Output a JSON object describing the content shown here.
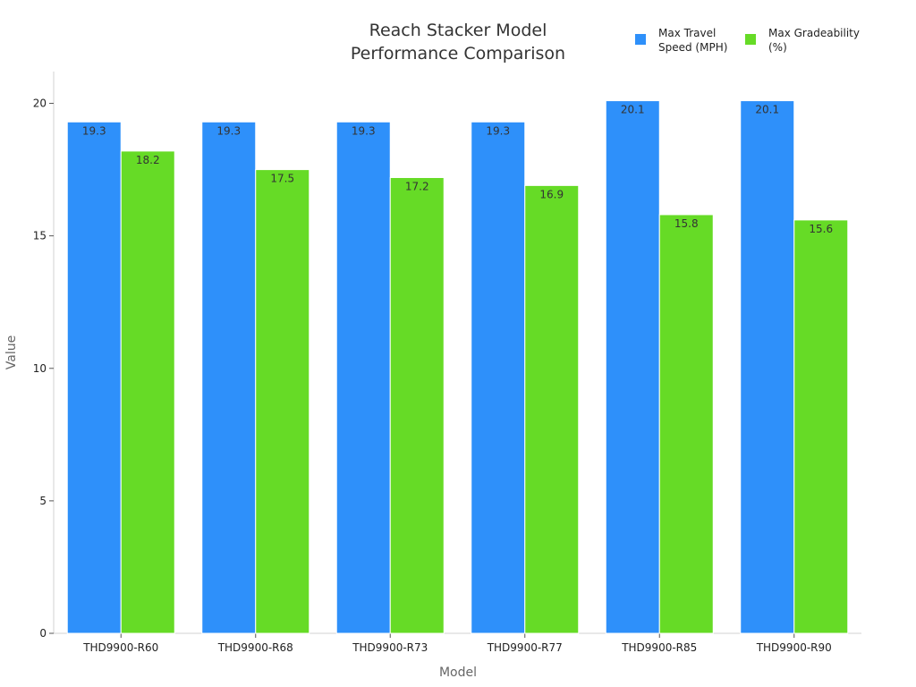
{
  "chart_data": {
    "type": "bar",
    "title": [
      "Reach Stacker Model",
      "Performance Comparison"
    ],
    "xlabel": "Model",
    "ylabel": "Value",
    "categories": [
      "THD9900-R60",
      "THD9900-R68",
      "THD9900-R73",
      "THD9900-R77",
      "THD9900-R85",
      "THD9900-R90"
    ],
    "series": [
      {
        "name": "Max Travel Speed (MPH)",
        "legend_lines": [
          "Max Travel",
          "Speed (MPH)"
        ],
        "color": "#2E90FA",
        "values": [
          19.3,
          19.3,
          19.3,
          19.3,
          20.1,
          20.1
        ],
        "labels": [
          "19.3",
          "19.3",
          "19.3",
          "19.3",
          "20.1",
          "20.1"
        ]
      },
      {
        "name": "Max Gradeability (%)",
        "legend_lines": [
          "Max Gradeability",
          "(%)"
        ],
        "color": "#66DB26",
        "values": [
          18.2,
          17.5,
          17.2,
          16.9,
          15.8,
          15.6
        ],
        "labels": [
          "18.2",
          "17.5",
          "17.2",
          "16.9",
          "15.8",
          "15.6"
        ]
      }
    ],
    "ylim": [
      0,
      21.2
    ],
    "yticks": [
      0,
      5,
      10,
      15,
      20
    ],
    "ytick_labels": [
      "0",
      "5",
      "10",
      "15",
      "20"
    ],
    "grid": false,
    "legend_position": "top-right"
  }
}
